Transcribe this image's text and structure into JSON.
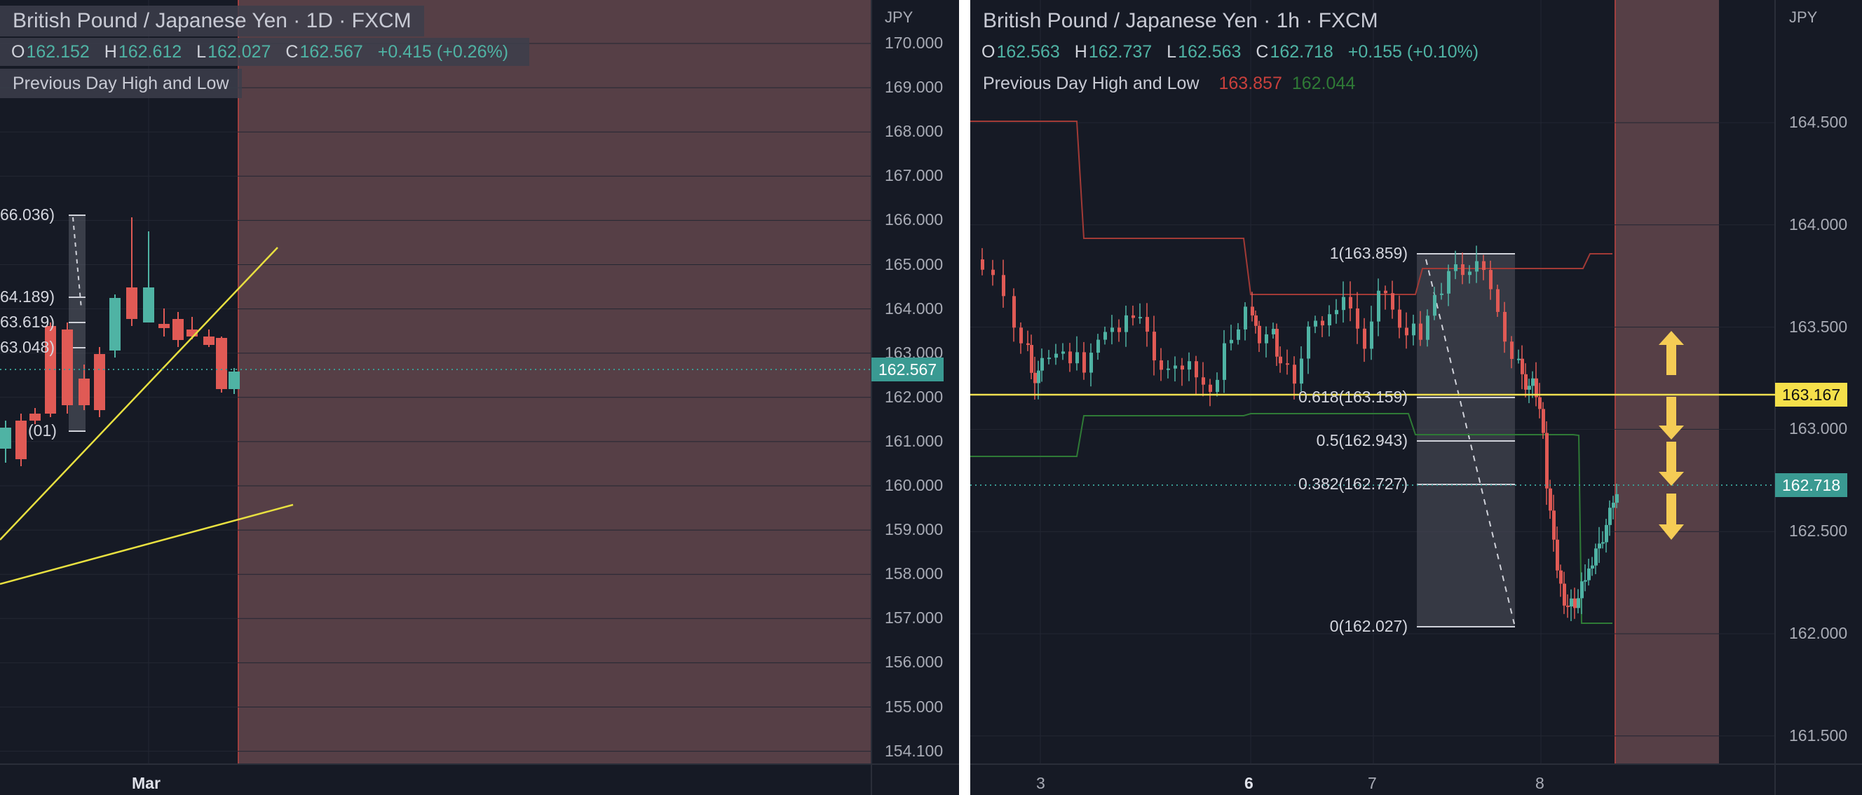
{
  "left": {
    "title": "British Pound / Japanese Yen · 1D · FXCM",
    "ohlc": {
      "o_label": "O",
      "o": "162.152",
      "h_label": "H",
      "h": "162.612",
      "l_label": "L",
      "l": "162.027",
      "c_label": "C",
      "c": "162.567",
      "change": "+0.415 (+0.26%)"
    },
    "indicator": "Previous Day High and Low",
    "unit": "JPY",
    "price_ticks": [
      "170.000",
      "169.000",
      "168.000",
      "167.000",
      "166.000",
      "165.000",
      "164.000",
      "163.000",
      "162.000",
      "161.000",
      "160.000",
      "159.000",
      "158.000",
      "157.000",
      "156.000",
      "155.000",
      "154.100"
    ],
    "price_tag": "162.567",
    "time_label": "Mar",
    "fib_labels": [
      "66.036)",
      "64.189)",
      "63.619)",
      "63.048)",
      "(01)"
    ],
    "colors": {
      "up": "#4fb3a4",
      "down": "#e05a55",
      "trend": "#e8e040",
      "shade": "#5a4148"
    }
  },
  "right": {
    "title": "British Pound / Japanese Yen · 1h · FXCM",
    "ohlc": {
      "o_label": "O",
      "o": "162.563",
      "h_label": "H",
      "h": "162.737",
      "l_label": "L",
      "l": "162.563",
      "c_label": "C",
      "c": "162.718",
      "change": "+0.155 (+0.10%)"
    },
    "indicator": "Previous Day High and Low",
    "indicator_high": "163.857",
    "indicator_low": "162.044",
    "unit": "JPY",
    "price_ticks": [
      "164.500",
      "164.000",
      "163.500",
      "163.000",
      "162.500",
      "162.000",
      "161.500"
    ],
    "price_tag_teal": "162.718",
    "price_tag_yellow": "163.167",
    "time_labels": [
      "3",
      "6",
      "7",
      "8"
    ],
    "fib_levels": [
      "1(163.859)",
      "0.618(163.159)",
      "0.5(162.943)",
      "0.382(162.727)",
      "0(162.027)"
    ],
    "colors": {
      "up": "#4fb3a4",
      "down": "#e05a55",
      "pdh": "#a23a36",
      "pdl": "#2f7a36",
      "hline": "#f0e050",
      "arrow": "#f5cc55"
    }
  }
}
